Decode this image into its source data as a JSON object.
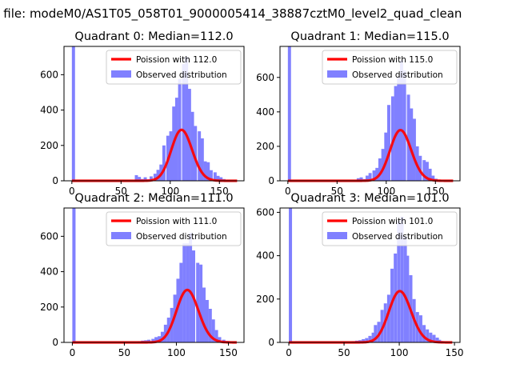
{
  "figure_title": "n file: modeM0/AS1T05_058T01_9000005414_38887cztM0_level2_quad_clean",
  "colors": {
    "histogram": "#8080ff",
    "poisson": "#ff0000",
    "axes": "#000000"
  },
  "chart_data": [
    {
      "type": "bar",
      "title": "Quadrant 0: Median=112.0",
      "xlim": [
        -8,
        175
      ],
      "ylim": [
        0,
        760
      ],
      "xticks": [
        0,
        50,
        100,
        150
      ],
      "yticks": [
        0,
        200,
        400,
        600
      ],
      "bin_width": 3.2,
      "series": [
        {
          "name": "Observed distribution",
          "kind": "histogram",
          "bins": [
            [
              0,
              760
            ],
            [
              64,
              32
            ],
            [
              67,
              22
            ],
            [
              70,
              10
            ],
            [
              73,
              20
            ],
            [
              76,
              8
            ],
            [
              79,
              25
            ],
            [
              83,
              40
            ],
            [
              86,
              62
            ],
            [
              89,
              92
            ],
            [
              92,
              200
            ],
            [
              96,
              255
            ],
            [
              99,
              280
            ],
            [
              102,
              420
            ],
            [
              105,
              470
            ],
            [
              108,
              575
            ],
            [
              112,
              660
            ],
            [
              115,
              700
            ],
            [
              118,
              520
            ],
            [
              121,
              390
            ],
            [
              124,
              310
            ],
            [
              128,
              280
            ],
            [
              131,
              240
            ],
            [
              134,
              110
            ],
            [
              137,
              105
            ],
            [
              140,
              60
            ],
            [
              144,
              48
            ],
            [
              147,
              28
            ],
            [
              150,
              20
            ],
            [
              153,
              10
            ],
            [
              157,
              5
            ]
          ]
        },
        {
          "name": "Poission with 112.0",
          "kind": "poisson",
          "lambda": 112.0,
          "scale": 7645,
          "x_range": [
            0,
            168
          ]
        }
      ],
      "legend": [
        "Poission with 112.0",
        "Observed distribution"
      ]
    },
    {
      "type": "bar",
      "title": "Quadrant 1: Median=115.0",
      "xlim": [
        -8,
        175
      ],
      "ylim": [
        0,
        780
      ],
      "xticks": [
        0,
        50,
        100,
        150
      ],
      "yticks": [
        0,
        200,
        400,
        600
      ],
      "bin_width": 3.2,
      "series": [
        {
          "name": "Observed distribution",
          "kind": "histogram",
          "bins": [
            [
              0,
              780
            ],
            [
              70,
              15
            ],
            [
              73,
              20
            ],
            [
              76,
              10
            ],
            [
              79,
              30
            ],
            [
              82,
              45
            ],
            [
              86,
              60
            ],
            [
              89,
              75
            ],
            [
              92,
              130
            ],
            [
              95,
              185
            ],
            [
              98,
              280
            ],
            [
              101,
              440
            ],
            [
              105,
              490
            ],
            [
              108,
              550
            ],
            [
              111,
              600
            ],
            [
              114,
              700
            ],
            [
              117,
              640
            ],
            [
              121,
              500
            ],
            [
              124,
              420
            ],
            [
              127,
              360
            ],
            [
              130,
              200
            ],
            [
              133,
              145
            ],
            [
              137,
              120
            ],
            [
              140,
              110
            ],
            [
              143,
              70
            ],
            [
              146,
              30
            ],
            [
              149,
              12
            ],
            [
              153,
              5
            ]
          ]
        },
        {
          "name": "Poission with 115.0",
          "kind": "poisson",
          "lambda": 115.0,
          "scale": 7910,
          "x_range": [
            0,
            168
          ]
        }
      ],
      "legend": [
        "Poission with 115.0",
        "Observed distribution"
      ]
    },
    {
      "type": "bar",
      "title": "Quadrant 2: Median=111.0",
      "xlim": [
        -8,
        165
      ],
      "ylim": [
        0,
        760
      ],
      "xticks": [
        0,
        50,
        100,
        150
      ],
      "yticks": [
        0,
        200,
        400,
        600
      ],
      "bin_width": 3.1,
      "series": [
        {
          "name": "Observed distribution",
          "kind": "histogram",
          "bins": [
            [
              0,
              760
            ],
            [
              63,
              5
            ],
            [
              66,
              10
            ],
            [
              69,
              12
            ],
            [
              72,
              15
            ],
            [
              76,
              20
            ],
            [
              79,
              30
            ],
            [
              82,
              35
            ],
            [
              85,
              60
            ],
            [
              88,
              100
            ],
            [
              91,
              140
            ],
            [
              94,
              195
            ],
            [
              97,
              270
            ],
            [
              100,
              360
            ],
            [
              103,
              450
            ],
            [
              106,
              560
            ],
            [
              109,
              560
            ],
            [
              112,
              620
            ],
            [
              115,
              520
            ],
            [
              119,
              450
            ],
            [
              122,
              440
            ],
            [
              125,
              310
            ],
            [
              128,
              240
            ],
            [
              131,
              190
            ],
            [
              134,
              130
            ],
            [
              137,
              70
            ],
            [
              140,
              30
            ],
            [
              144,
              15
            ],
            [
              147,
              8
            ],
            [
              150,
              4
            ]
          ]
        },
        {
          "name": "Poission with 111.0",
          "kind": "poisson",
          "lambda": 111.0,
          "scale": 7835,
          "x_range": [
            0,
            158
          ]
        }
      ],
      "legend": [
        "Poission with 111.0",
        "Observed distribution"
      ]
    },
    {
      "type": "bar",
      "title": "Quadrant 3: Median=101.0",
      "xlim": [
        -8,
        155
      ],
      "ylim": [
        0,
        620
      ],
      "xticks": [
        0,
        50,
        100,
        150
      ],
      "yticks": [
        0,
        200,
        400,
        600
      ],
      "bin_width": 2.9,
      "series": [
        {
          "name": "Observed distribution",
          "kind": "histogram",
          "bins": [
            [
              0,
              620
            ],
            [
              57,
              5
            ],
            [
              60,
              8
            ],
            [
              63,
              10
            ],
            [
              66,
              15
            ],
            [
              69,
              20
            ],
            [
              72,
              30
            ],
            [
              75,
              45
            ],
            [
              77,
              80
            ],
            [
              80,
              95
            ],
            [
              83,
              150
            ],
            [
              86,
              180
            ],
            [
              89,
              220
            ],
            [
              92,
              340
            ],
            [
              95,
              410
            ],
            [
              98,
              560
            ],
            [
              101,
              580
            ],
            [
              104,
              490
            ],
            [
              106,
              400
            ],
            [
              109,
              310
            ],
            [
              112,
              200
            ],
            [
              115,
              140
            ],
            [
              118,
              125
            ],
            [
              121,
              80
            ],
            [
              124,
              60
            ],
            [
              127,
              45
            ],
            [
              130,
              35
            ],
            [
              133,
              22
            ],
            [
              135,
              12
            ],
            [
              138,
              6
            ],
            [
              141,
              4
            ]
          ]
        },
        {
          "name": "Poission with 101.0",
          "kind": "poisson",
          "lambda": 101.0,
          "scale": 5962,
          "x_range": [
            0,
            148
          ]
        }
      ],
      "legend": [
        "Poission with 101.0",
        "Observed distribution"
      ]
    }
  ]
}
